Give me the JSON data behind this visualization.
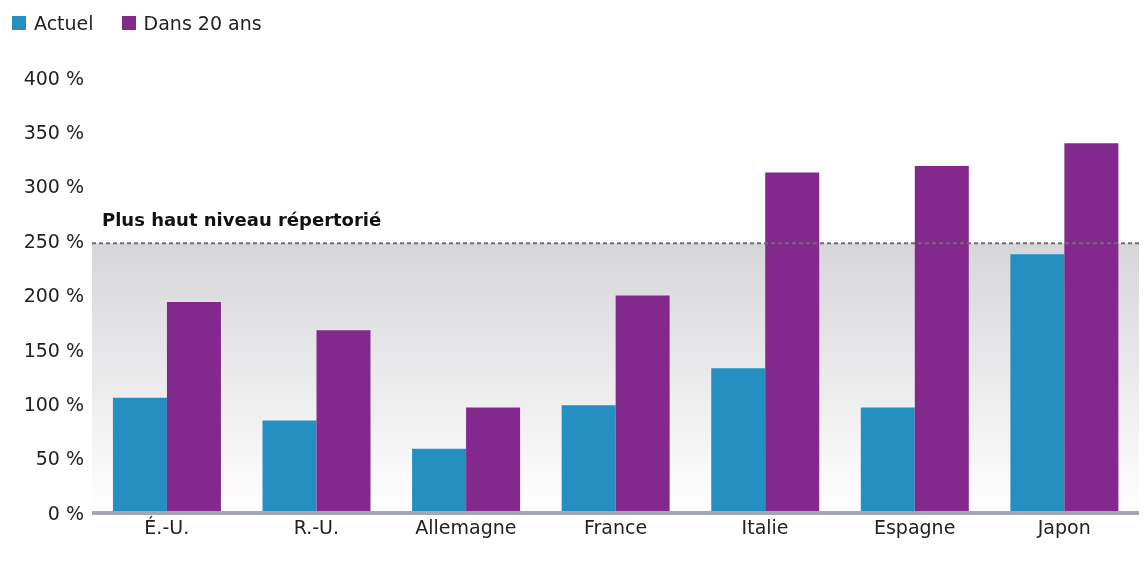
{
  "chart_data": {
    "type": "bar",
    "categories": [
      "É.-U.",
      "R.-U.",
      "Allemagne",
      "France",
      "Italie",
      "Espagne",
      "Japon"
    ],
    "series": [
      {
        "name": "Actuel",
        "color": "#268fc2",
        "values": [
          106,
          85,
          59,
          99,
          133,
          97,
          238
        ]
      },
      {
        "name": "Dans 20 ans",
        "color": "#83288c",
        "values": [
          194,
          168,
          97,
          200,
          313,
          319,
          340
        ]
      }
    ],
    "ylim": [
      0,
      400
    ],
    "yticks": [
      {
        "value": 0,
        "label": "0 %"
      },
      {
        "value": 50,
        "label": "50 %"
      },
      {
        "value": 100,
        "label": "100 %"
      },
      {
        "value": 150,
        "label": "150 %"
      },
      {
        "value": 200,
        "label": "200 %"
      },
      {
        "value": 250,
        "label": "250 %"
      },
      {
        "value": 300,
        "label": "300 %"
      },
      {
        "value": 350,
        "label": "350 %"
      },
      {
        "value": 400,
        "label": "400 %"
      }
    ],
    "ref_lines": [
      {
        "axis": "y",
        "value": 248,
        "label": "Plus haut niveau répertorié",
        "color": "#6d6e71",
        "line_style": "dashed"
      }
    ],
    "bands": [
      {
        "axis": "y",
        "from": 0,
        "to": 248,
        "color": "#d6d6d9"
      }
    ],
    "grid": false,
    "legend": "top left"
  }
}
